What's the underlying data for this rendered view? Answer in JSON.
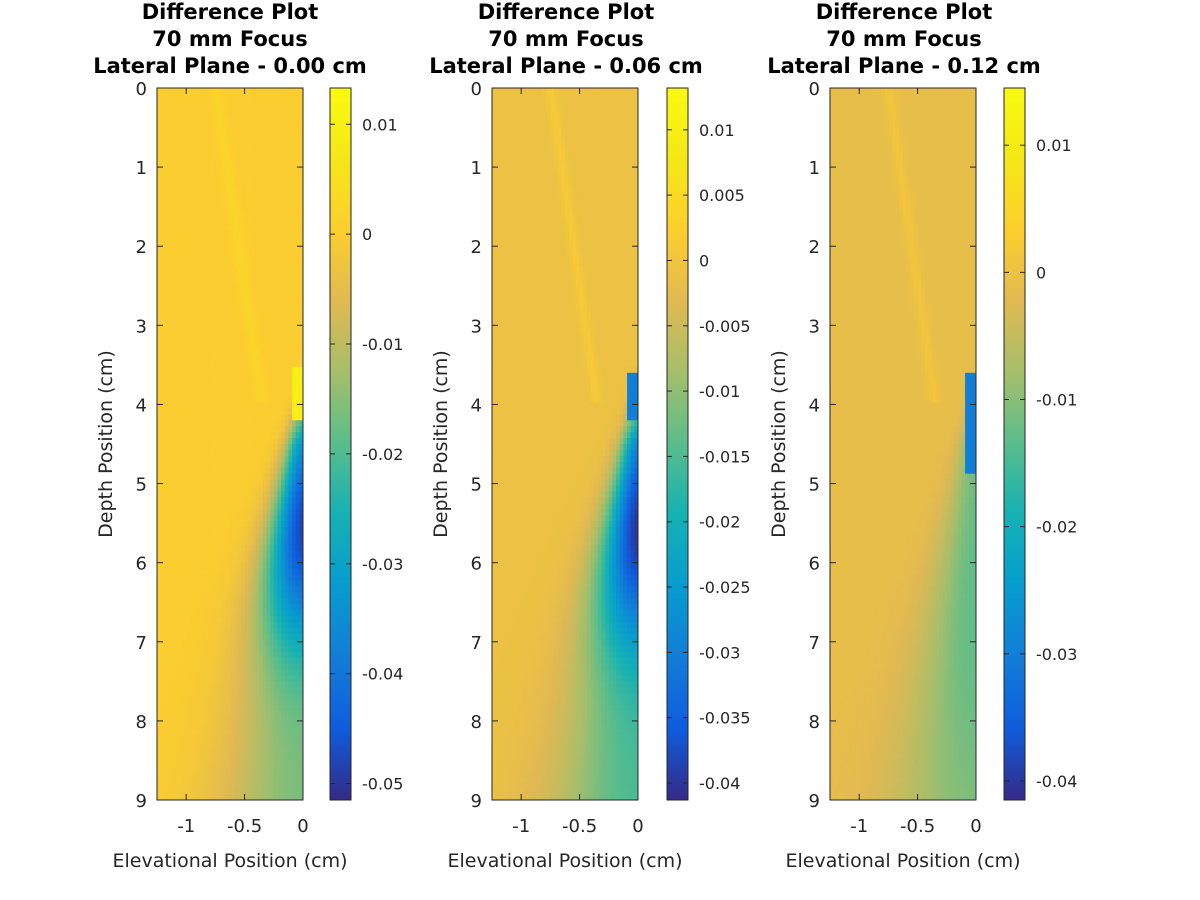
{
  "chart_data": [
    {
      "type": "heatmap",
      "title": [
        "Difference Plot",
        "70 mm Focus",
        "Lateral Plane - 0.00 cm"
      ],
      "xlabel": "Elevational Position (cm)",
      "ylabel": "Depth Position (cm)",
      "xlim": [
        -1.25,
        0
      ],
      "ylim": [
        0,
        9
      ],
      "y_reversed": true,
      "xticks": [
        {
          "value": -1,
          "label": "-1"
        },
        {
          "value": -0.5,
          "label": "-0.5"
        },
        {
          "value": 0,
          "label": "0"
        }
      ],
      "yticks": [
        {
          "value": 0,
          "label": "0"
        },
        {
          "value": 1,
          "label": "1"
        },
        {
          "value": 2,
          "label": "2"
        },
        {
          "value": 3,
          "label": "3"
        },
        {
          "value": 4,
          "label": "4"
        },
        {
          "value": 5,
          "label": "5"
        },
        {
          "value": 6,
          "label": "6"
        },
        {
          "value": 7,
          "label": "7"
        },
        {
          "value": 8,
          "label": "8"
        },
        {
          "value": 9,
          "label": "9"
        }
      ],
      "colorbar": {
        "range": [
          -0.0515,
          0.0133
        ],
        "colormap": "parula",
        "ticks": [
          {
            "value": 0.01,
            "label": "0.01"
          },
          {
            "value": 0,
            "label": "0"
          },
          {
            "value": -0.01,
            "label": "-0.01"
          },
          {
            "value": -0.02,
            "label": "-0.02"
          },
          {
            "value": -0.03,
            "label": "-0.03"
          },
          {
            "value": -0.04,
            "label": "-0.04"
          },
          {
            "value": -0.05,
            "label": "-0.05"
          }
        ]
      },
      "field": {
        "background": 0.0,
        "blob_depth": 5.6,
        "blob_min": -0.048,
        "blob_spread": 1.4,
        "tail": -0.016,
        "edge_band": [
          3.5,
          4.2
        ],
        "edge_value": 0.009
      }
    },
    {
      "type": "heatmap",
      "title": [
        "Difference Plot",
        "70 mm Focus",
        "Lateral Plane - 0.06 cm"
      ],
      "xlabel": "Elevational Position (cm)",
      "ylabel": "Depth Position (cm)",
      "xlim": [
        -1.25,
        0
      ],
      "ylim": [
        0,
        9
      ],
      "y_reversed": true,
      "xticks": [
        {
          "value": -1,
          "label": "-1"
        },
        {
          "value": -0.5,
          "label": "-0.5"
        },
        {
          "value": 0,
          "label": "0"
        }
      ],
      "yticks": [
        {
          "value": 0,
          "label": "0"
        },
        {
          "value": 1,
          "label": "1"
        },
        {
          "value": 2,
          "label": "2"
        },
        {
          "value": 3,
          "label": "3"
        },
        {
          "value": 4,
          "label": "4"
        },
        {
          "value": 5,
          "label": "5"
        },
        {
          "value": 6,
          "label": "6"
        },
        {
          "value": 7,
          "label": "7"
        },
        {
          "value": 8,
          "label": "8"
        },
        {
          "value": 9,
          "label": "9"
        }
      ],
      "colorbar": {
        "range": [
          -0.0413,
          0.0132
        ],
        "colormap": "parula",
        "ticks": [
          {
            "value": 0.01,
            "label": "0.01"
          },
          {
            "value": 0.005,
            "label": "0.005"
          },
          {
            "value": 0,
            "label": "0"
          },
          {
            "value": -0.005,
            "label": "-0.005"
          },
          {
            "value": -0.01,
            "label": "-0.01"
          },
          {
            "value": -0.015,
            "label": "-0.015"
          },
          {
            "value": -0.02,
            "label": "-0.02"
          },
          {
            "value": -0.025,
            "label": "-0.025"
          },
          {
            "value": -0.03,
            "label": "-0.03"
          },
          {
            "value": -0.035,
            "label": "-0.035"
          },
          {
            "value": -0.04,
            "label": "-0.04"
          }
        ]
      },
      "field": {
        "background": -0.001,
        "blob_depth": 5.6,
        "blob_min": -0.039,
        "blob_spread": 1.4,
        "tail": -0.014,
        "edge_band": [
          3.6,
          4.2
        ],
        "edge_value": -0.03
      }
    },
    {
      "type": "heatmap",
      "title": [
        "Difference Plot",
        "70 mm Focus",
        "Lateral Plane - 0.12 cm"
      ],
      "xlabel": "Elevational Position (cm)",
      "ylabel": "Depth Position (cm)",
      "xlim": [
        -1.25,
        0
      ],
      "ylim": [
        0,
        9
      ],
      "y_reversed": true,
      "xticks": [
        {
          "value": -1,
          "label": "-1"
        },
        {
          "value": -0.5,
          "label": "-0.5"
        },
        {
          "value": 0,
          "label": "0"
        }
      ],
      "yticks": [
        {
          "value": 0,
          "label": "0"
        },
        {
          "value": 1,
          "label": "1"
        },
        {
          "value": 2,
          "label": "2"
        },
        {
          "value": 3,
          "label": "3"
        },
        {
          "value": 4,
          "label": "4"
        },
        {
          "value": 5,
          "label": "5"
        },
        {
          "value": 6,
          "label": "6"
        },
        {
          "value": 7,
          "label": "7"
        },
        {
          "value": 8,
          "label": "8"
        },
        {
          "value": 9,
          "label": "9"
        }
      ],
      "colorbar": {
        "range": [
          -0.0415,
          0.0145
        ],
        "colormap": "parula",
        "ticks": [
          {
            "value": 0.01,
            "label": "0.01"
          },
          {
            "value": 0,
            "label": "0"
          },
          {
            "value": -0.01,
            "label": "-0.01"
          },
          {
            "value": -0.02,
            "label": "-0.02"
          },
          {
            "value": -0.03,
            "label": "-0.03"
          },
          {
            "value": -0.04,
            "label": "-0.04"
          }
        ]
      },
      "field": {
        "background": -0.001,
        "blob_depth": 6.5,
        "blob_min": -0.012,
        "blob_spread": 2.2,
        "tail": -0.009,
        "edge_band": [
          3.6,
          4.9
        ],
        "edge_value": -0.03
      }
    }
  ]
}
